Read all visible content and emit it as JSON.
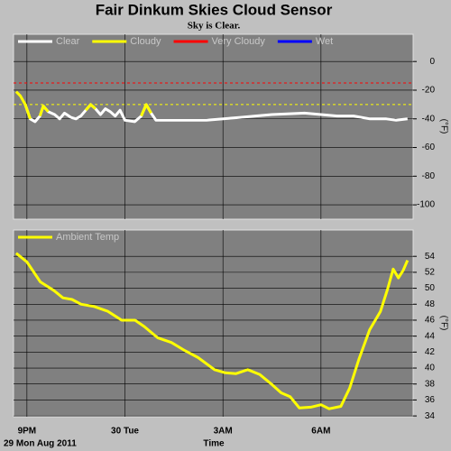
{
  "chart_data": [
    {
      "type": "line",
      "title": "Fair Dinkum Skies Cloud Sensor",
      "subtitle": "Sky is Clear.",
      "ylabel": "(°F)",
      "x": [
        20.67,
        20.8,
        20.95,
        21.1,
        21.25,
        21.4,
        21.5,
        21.65,
        21.85,
        22.0,
        22.15,
        22.35,
        22.5,
        22.65,
        22.8,
        22.95,
        23.1,
        23.25,
        23.4,
        23.55,
        23.7,
        23.85,
        24.0,
        24.3,
        24.5,
        24.65,
        24.8,
        24.95,
        25.5,
        26.5,
        27.5,
        28.5,
        29.5,
        30.5,
        31.0,
        31.5,
        32.0,
        32.3,
        32.65
      ],
      "series": [
        {
          "name": "Clear",
          "color": "#ffffff",
          "values": [
            null,
            null,
            -30,
            -40,
            -42,
            -38,
            -31,
            -35,
            -37,
            -40,
            -36,
            -39,
            -40,
            -38,
            -34,
            -30,
            -33,
            -37,
            -33,
            -35,
            -38,
            -34,
            -41,
            -42,
            -38,
            -30,
            -36,
            -41,
            -41,
            -41,
            -39,
            -37,
            -36,
            -38,
            -38,
            -40,
            -40,
            -41,
            -40
          ]
        },
        {
          "name": "Cloudy",
          "color": "#ffff00",
          "threshold": -30,
          "values": [
            -21,
            -24,
            -30,
            -40,
            null,
            -38,
            -31,
            -35,
            null,
            null,
            null,
            null,
            null,
            null,
            -34,
            -30,
            -33,
            null,
            null,
            null,
            null,
            null,
            null,
            null,
            -38,
            -30,
            -36,
            null,
            null,
            null,
            null,
            null,
            null,
            null,
            null,
            null,
            null,
            null,
            null
          ]
        },
        {
          "name": "Very Cloudy",
          "color": "#ff0000",
          "threshold": -15
        },
        {
          "name": "Wet",
          "color": "#0000ff"
        }
      ],
      "xlim": [
        20.59,
        32.82
      ],
      "xticks": [
        {
          "value": 21,
          "label": "9PM"
        },
        {
          "value": 24,
          "label": "30 Tue"
        },
        {
          "value": 27,
          "label": "3AM"
        },
        {
          "value": 30,
          "label": "6AM"
        }
      ],
      "ylim": [
        -110,
        19
      ],
      "yticks": [
        0,
        -20,
        -40,
        -60,
        -80,
        -100
      ],
      "grid": true
    },
    {
      "type": "line",
      "ylabel": "(°F)",
      "xlabel": "Time",
      "date": "29 Mon Aug 2011",
      "x": [
        20.67,
        21,
        21.41,
        21.83,
        22.1,
        22.38,
        22.66,
        23.07,
        23.48,
        23.9,
        24.31,
        24.59,
        25.0,
        25.42,
        25.83,
        26.24,
        26.74,
        27.07,
        27.4,
        27.76,
        28.12,
        28.45,
        28.78,
        29.06,
        29.34,
        29.69,
        30.0,
        30.25,
        30.61,
        30.88,
        31.16,
        31.49,
        31.82,
        32.04,
        32.21,
        32.37,
        32.51,
        32.65
      ],
      "series": [
        {
          "name": "Ambient Temp",
          "color": "#ffff00",
          "values": [
            54.4,
            53.3,
            50.8,
            49.7,
            48.8,
            48.6,
            48.0,
            47.7,
            47.1,
            46.0,
            46.0,
            45.2,
            43.8,
            43.2,
            42.2,
            41.3,
            39.8,
            39.4,
            39.3,
            39.8,
            39.2,
            38.1,
            36.9,
            36.4,
            35.0,
            35.1,
            35.4,
            34.9,
            35.2,
            37.5,
            41.1,
            44.8,
            47.1,
            49.9,
            52.4,
            51.3,
            52.2,
            53.5
          ]
        }
      ],
      "xlim": [
        20.59,
        32.82
      ],
      "xticks": [
        {
          "value": 21,
          "label": "9PM"
        },
        {
          "value": 24,
          "label": "30 Tue"
        },
        {
          "value": 27,
          "label": "3AM"
        },
        {
          "value": 30,
          "label": "6AM"
        }
      ],
      "ylim": [
        33.9,
        57.3
      ],
      "yticks": [
        34,
        36,
        38,
        40,
        42,
        44,
        46,
        48,
        50,
        52,
        54
      ],
      "grid": true
    }
  ]
}
